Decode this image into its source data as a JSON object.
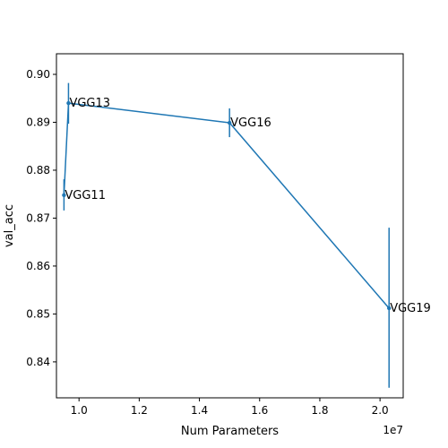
{
  "chart_data": {
    "type": "line",
    "xlabel": "Num Parameters",
    "ylabel": "val_acc",
    "x_exponent_label": "1e7",
    "xlim": [
      0.925,
      2.077
    ],
    "ylim": [
      0.8325,
      0.9043
    ],
    "x_ticks": [
      1.0,
      1.2,
      1.4,
      1.6,
      1.8,
      2.0
    ],
    "x_tick_labels": [
      "1.0",
      "1.2",
      "1.4",
      "1.6",
      "1.8",
      "2.0"
    ],
    "y_ticks": [
      0.84,
      0.85,
      0.86,
      0.87,
      0.88,
      0.89,
      0.9
    ],
    "y_tick_labels": [
      "0.84",
      "0.85",
      "0.86",
      "0.87",
      "0.88",
      "0.89",
      "0.90"
    ],
    "grid": false,
    "color": "#1f77b4",
    "points": [
      {
        "label": "VGG11",
        "x": 0.95,
        "y": 0.8748,
        "err_low": 0.8716,
        "err_high": 0.8781
      },
      {
        "label": "VGG13",
        "x": 0.965,
        "y": 0.894,
        "err_low": 0.8897,
        "err_high": 0.8982
      },
      {
        "label": "VGG16",
        "x": 1.5,
        "y": 0.8899,
        "err_low": 0.8869,
        "err_high": 0.8929
      },
      {
        "label": "VGG19",
        "x": 2.03,
        "y": 0.8512,
        "err_low": 0.8346,
        "err_high": 0.868
      }
    ]
  }
}
